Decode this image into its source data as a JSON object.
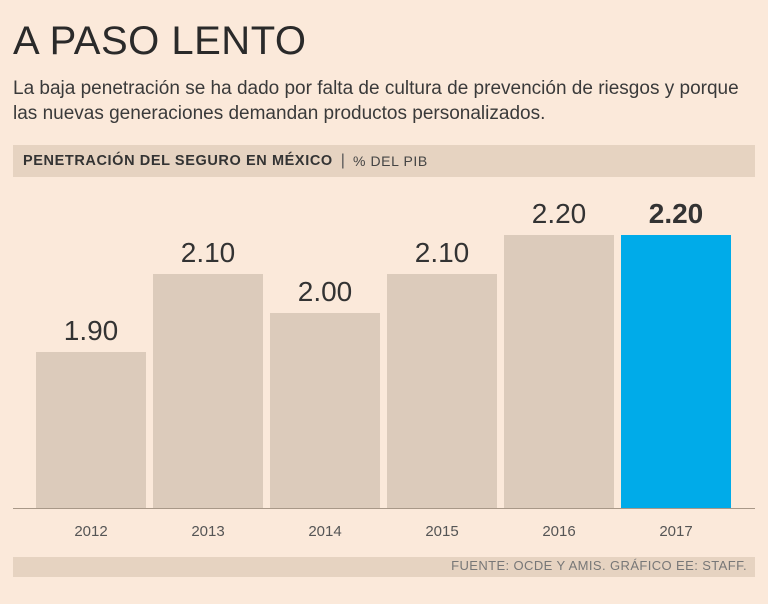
{
  "header": {
    "title": "A PASO LENTO",
    "subtitle": "La baja penetración se ha dado por falta de cultura de prevención de riesgos y porque las nuevas generaciones demandan productos personalizados."
  },
  "banner": {
    "label": "PENETRACIÓN DEL SEGURO EN MÉXICO",
    "separator": "|",
    "unit": "% DEL PIB"
  },
  "chart_data": {
    "type": "bar",
    "title": "PENETRACIÓN DEL SEGURO EN MÉXICO",
    "ylabel": "% DEL PIB",
    "xlabel": "",
    "categories": [
      "2012",
      "2013",
      "2014",
      "2015",
      "2016",
      "2017"
    ],
    "values": [
      1.9,
      2.1,
      2.0,
      2.1,
      2.2,
      2.2
    ],
    "value_labels": [
      "1.90",
      "2.10",
      "2.00",
      "2.10",
      "2.20",
      "2.20"
    ],
    "highlight_index": 5,
    "colors": {
      "bar": "#dccbbb",
      "highlight": "#00abe9",
      "label": "#333333",
      "baseline": "#a89888"
    }
  },
  "footer": {
    "source": "FUENTE: OCDE Y AMIS.  GRÁFICO EE: STAFF."
  }
}
